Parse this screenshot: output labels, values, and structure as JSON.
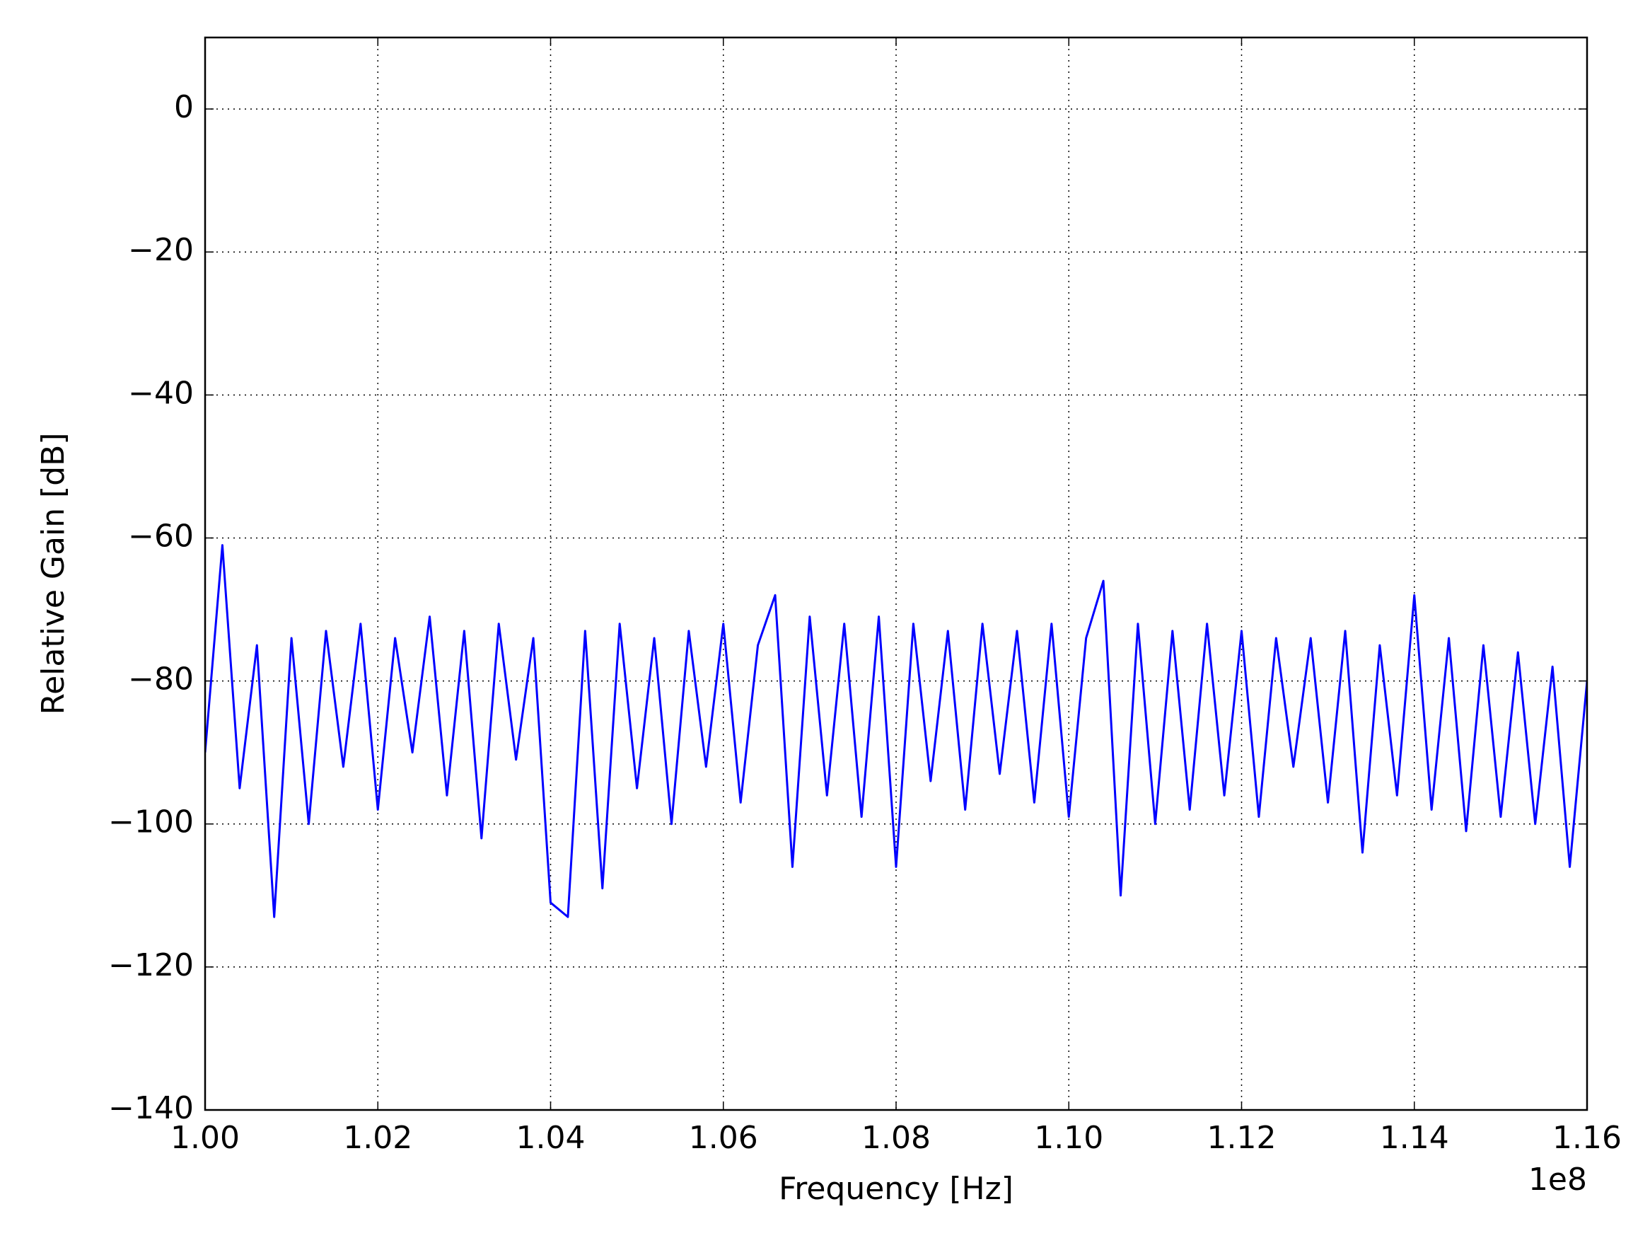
{
  "chart_data": {
    "type": "line",
    "xlabel": "Frequency [Hz]",
    "ylabel": "Relative Gain [dB]",
    "x_offset_label": "1e8",
    "xlim": [
      1.0,
      1.16
    ],
    "ylim": [
      -140,
      10
    ],
    "xticks": [
      {
        "value": 1.0,
        "label": "1.00"
      },
      1.02,
      1.04,
      1.06,
      1.08,
      {
        "value": 1.1,
        "label": "1.10"
      },
      1.12,
      1.14,
      1.16
    ],
    "yticks": [
      {
        "value": -140,
        "label": "−140"
      },
      {
        "value": -120,
        "label": "−120"
      },
      {
        "value": -100,
        "label": "−100"
      },
      {
        "value": -80,
        "label": "−80"
      },
      {
        "value": -60,
        "label": "−60"
      },
      {
        "value": -40,
        "label": "−40"
      },
      {
        "value": -20,
        "label": "−20"
      },
      0
    ],
    "grid": true,
    "series": [
      {
        "color": "#0000ff",
        "x": [
          1.0,
          1.002,
          1.004,
          1.006,
          1.008,
          1.01,
          1.012,
          1.014,
          1.016,
          1.018,
          1.02,
          1.022,
          1.024,
          1.026,
          1.028,
          1.03,
          1.032,
          1.034,
          1.036,
          1.038,
          1.04,
          1.042,
          1.044,
          1.046,
          1.048,
          1.05,
          1.052,
          1.054,
          1.056,
          1.058,
          1.06,
          1.062,
          1.064,
          1.066,
          1.068,
          1.07,
          1.072,
          1.074,
          1.076,
          1.078,
          1.08,
          1.082,
          1.084,
          1.086,
          1.088,
          1.09,
          1.092,
          1.094,
          1.096,
          1.098,
          1.1,
          1.102,
          1.104,
          1.106,
          1.108,
          1.11,
          1.112,
          1.114,
          1.116,
          1.118,
          1.12,
          1.122,
          1.124,
          1.126,
          1.128,
          1.13,
          1.132,
          1.134,
          1.136,
          1.138,
          1.14,
          1.142,
          1.144,
          1.146,
          1.148,
          1.15,
          1.152,
          1.154,
          1.156,
          1.158,
          1.16
        ],
        "values": [
          -90,
          -61,
          -95,
          -75,
          -113,
          -74,
          -100,
          -73,
          -92,
          -72,
          -98,
          -74,
          -90,
          -71,
          -96,
          -73,
          -102,
          -72,
          -91,
          -74,
          -111,
          -113,
          -73,
          -109,
          -72,
          -95,
          -74,
          -100,
          -73,
          -92,
          -72,
          -97,
          -75,
          -68,
          -106,
          -71,
          -96,
          -72,
          -99,
          -71,
          -106,
          -72,
          -94,
          -73,
          -98,
          -72,
          -93,
          -73,
          -97,
          -72,
          -99,
          -74,
          -66,
          -110,
          -72,
          -100,
          -73,
          -98,
          -72,
          -96,
          -73,
          -99,
          -74,
          -92,
          -74,
          -97,
          -73,
          -104,
          -75,
          -96,
          -68,
          -98,
          -74,
          -101,
          -75,
          -99,
          -76,
          -100,
          -78,
          -106,
          -80
        ]
      }
    ]
  }
}
